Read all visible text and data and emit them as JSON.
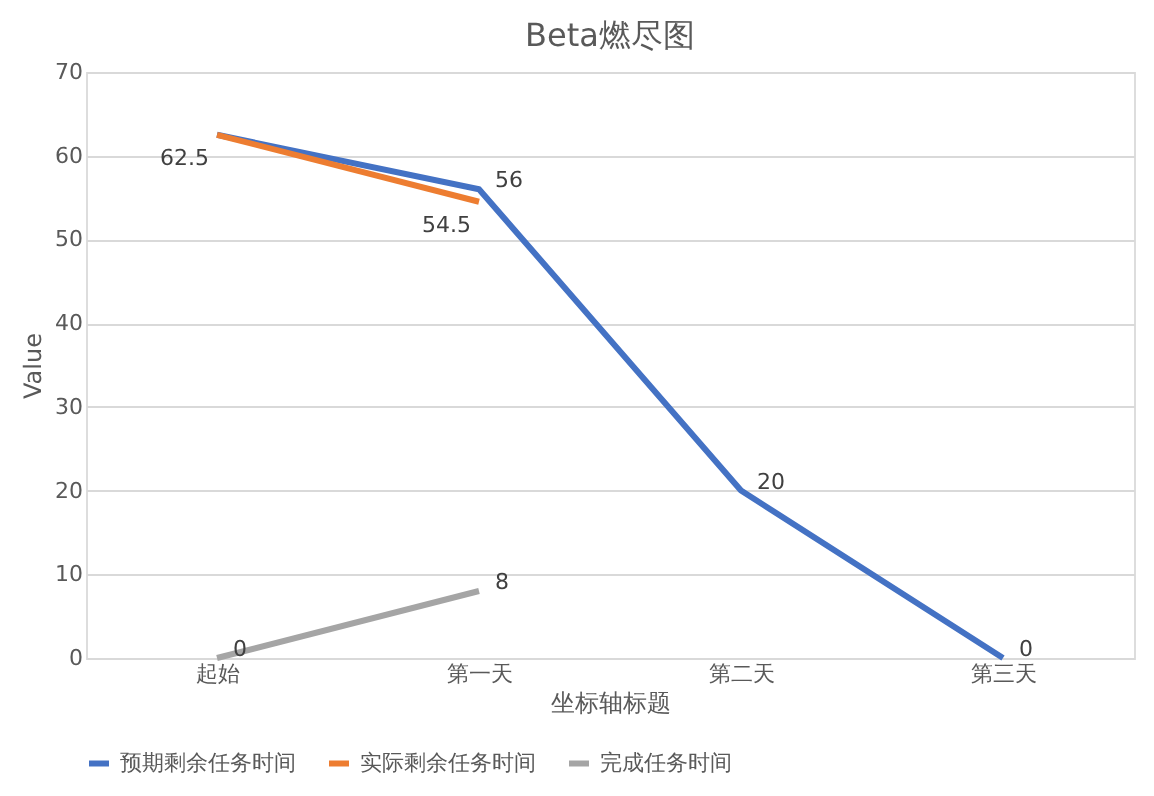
{
  "chart_data": {
    "type": "line",
    "title": "Beta燃尽图",
    "xlabel": "坐标轴标题",
    "ylabel": "Value",
    "categories": [
      "起始",
      "第一天",
      "第二天",
      "第三天"
    ],
    "series": [
      {
        "name": "预期剩余任务时间",
        "color": "#4472c4",
        "values": [
          62.5,
          56,
          20,
          0
        ],
        "value_labels": [
          null,
          "56",
          "20",
          "0"
        ]
      },
      {
        "name": "实际剩余任务时间",
        "color": "#ed7d31",
        "values": [
          62.5,
          54.5,
          null,
          null
        ],
        "value_labels": [
          "62.5",
          "54.5",
          null,
          null
        ]
      },
      {
        "name": "完成任务时间",
        "color": "#a5a5a5",
        "values": [
          0,
          8,
          null,
          null
        ],
        "value_labels": [
          "0",
          "8",
          null,
          null
        ]
      }
    ],
    "ylim": [
      0,
      70
    ],
    "yticks": [
      0,
      10,
      20,
      30,
      40,
      50,
      60,
      70
    ],
    "grid": "y",
    "legend": "bottom",
    "marker": "none",
    "line_style": "solid"
  }
}
